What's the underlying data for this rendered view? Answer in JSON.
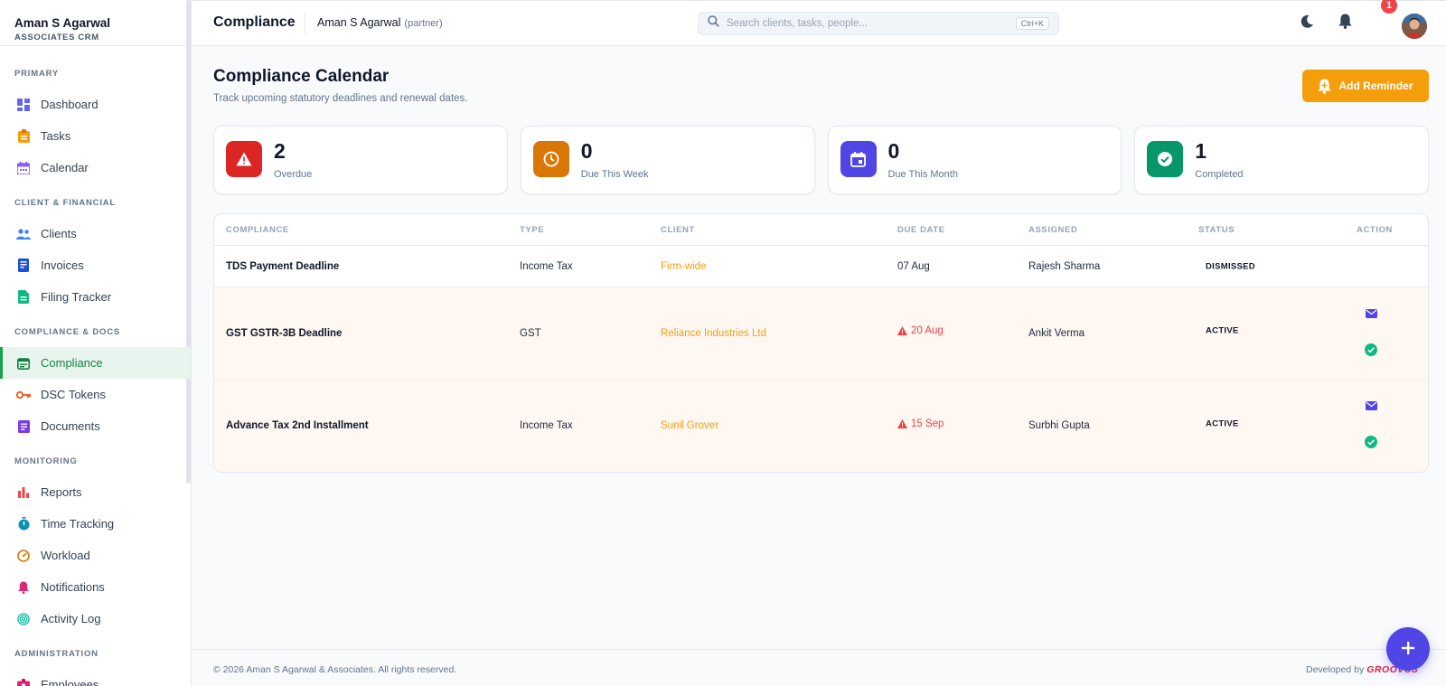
{
  "brand": {
    "name": "Aman S Agarwal",
    "subtitle": "ASSOCIATES CRM"
  },
  "sidebar": {
    "sections": [
      {
        "title": "PRIMARY",
        "items": [
          {
            "label": "Dashboard",
            "icon": "dashboard-icon"
          },
          {
            "label": "Tasks",
            "icon": "clipboard-icon"
          },
          {
            "label": "Calendar",
            "icon": "calendar-icon"
          }
        ]
      },
      {
        "title": "CLIENT & FINANCIAL",
        "items": [
          {
            "label": "Clients",
            "icon": "people-icon"
          },
          {
            "label": "Invoices",
            "icon": "invoice-icon"
          },
          {
            "label": "Filing Tracker",
            "icon": "file-icon"
          }
        ]
      },
      {
        "title": "COMPLIANCE & DOCS",
        "items": [
          {
            "label": "Compliance",
            "icon": "compliance-calendar-icon",
            "active": true
          },
          {
            "label": "DSC Tokens",
            "icon": "key-icon"
          },
          {
            "label": "Documents",
            "icon": "document-icon"
          }
        ]
      },
      {
        "title": "MONITORING",
        "items": [
          {
            "label": "Reports",
            "icon": "bar-chart-icon"
          },
          {
            "label": "Time Tracking",
            "icon": "stopwatch-icon"
          },
          {
            "label": "Workload",
            "icon": "gauge-icon"
          },
          {
            "label": "Notifications",
            "icon": "bell-icon"
          },
          {
            "label": "Activity Log",
            "icon": "fingerprint-icon"
          }
        ]
      },
      {
        "title": "ADMINISTRATION",
        "items": [
          {
            "label": "Employees",
            "icon": "badge-icon"
          }
        ]
      }
    ]
  },
  "header": {
    "title": "Compliance",
    "user": "Aman S Agarwal",
    "role": "(partner)",
    "search_placeholder": "Search clients, tasks, people...",
    "search_shortcut": "Ctrl+K",
    "notification_count": "1"
  },
  "page": {
    "title": "Compliance Calendar",
    "subtitle": "Track upcoming statutory deadlines and renewal dates.",
    "add_button": "Add Reminder"
  },
  "stats": [
    {
      "value": "2",
      "label": "Overdue",
      "color": "#dc2626",
      "icon": "warning-icon"
    },
    {
      "value": "0",
      "label": "Due This Week",
      "color": "#d97706",
      "icon": "clock-icon"
    },
    {
      "value": "0",
      "label": "Due This Month",
      "color": "#4f46e5",
      "icon": "calendar-event-icon"
    },
    {
      "value": "1",
      "label": "Completed",
      "color": "#059669",
      "icon": "check-circle-icon"
    }
  ],
  "table": {
    "columns": [
      "COMPLIANCE",
      "TYPE",
      "CLIENT",
      "DUE DATE",
      "ASSIGNED",
      "STATUS",
      "ACTION"
    ],
    "rows": [
      {
        "compliance": "TDS Payment Deadline",
        "type": "Income Tax",
        "client": "Firm-wide",
        "due": "07 Aug",
        "assigned": "Rajesh Sharma",
        "status": "DISMISSED"
      },
      {
        "compliance": "GST GSTR-3B Deadline",
        "type": "GST",
        "client": "Reliance Industries Ltd",
        "due": "20 Aug",
        "assigned": "Ankit Verma",
        "status": "ACTIVE"
      },
      {
        "compliance": "Advance Tax 2nd Installment",
        "type": "Income Tax",
        "client": "Sunil Grover",
        "due": "15 Sep",
        "assigned": "Surbhi Gupta",
        "status": "ACTIVE"
      }
    ]
  },
  "footer": {
    "copyright": "© 2026 Aman S Agarwal & Associates. All rights reserved.",
    "developed_by": "Developed by",
    "developer_logo": "GROOVUS"
  },
  "colors": {
    "accent": "#16a34a",
    "warning": "#f59e0b",
    "primary": "#4f46e5",
    "danger": "#ef4444"
  }
}
